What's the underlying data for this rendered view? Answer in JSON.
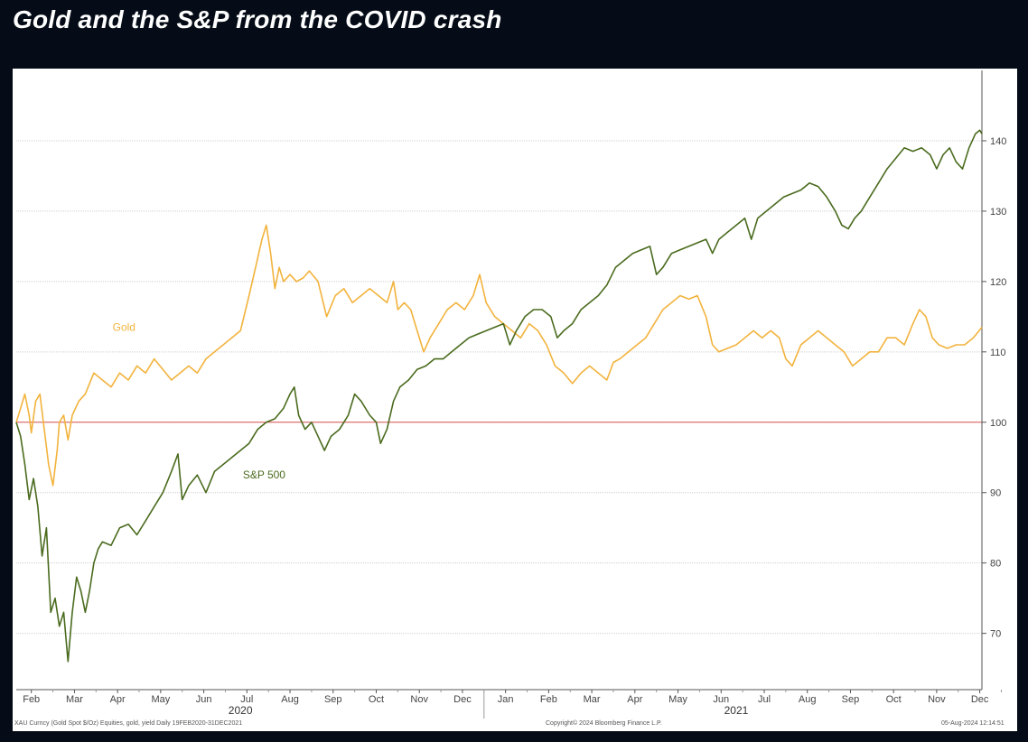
{
  "title": "Gold and the S&P from the COVID crash",
  "footer": {
    "left": "XAU Curncy (Gold Spot  $/Oz) Equities, gold, yield  Daily 19FEB2020-31DEC2021",
    "center": "Copyright© 2024 Bloomberg Finance L.P.",
    "right": "05-Aug-2024 12:14:51"
  },
  "chart_data": {
    "type": "line",
    "title": "Gold and the S&P from the COVID crash",
    "ylim": [
      62,
      150
    ],
    "yticks": [
      70,
      80,
      90,
      100,
      110,
      120,
      130,
      140
    ],
    "y_axis_side": "right",
    "grid": true,
    "reference_line": {
      "value": 100,
      "color": "#d9534f"
    },
    "x_months": [
      "Feb",
      "Mar",
      "Apr",
      "May",
      "Jun",
      "Jul",
      "Aug",
      "Sep",
      "Oct",
      "Nov",
      "Dec",
      "Jan",
      "Feb",
      "Mar",
      "Apr",
      "May",
      "Jun",
      "Jul",
      "Aug",
      "Sep",
      "Oct",
      "Nov",
      "Dec"
    ],
    "x_years": [
      "2020",
      "2021"
    ],
    "x_range": [
      0,
      22.4
    ],
    "series": [
      {
        "name": "Gold",
        "color": "#f2b33d",
        "points": [
          [
            0.0,
            100
          ],
          [
            0.1,
            102
          ],
          [
            0.2,
            104
          ],
          [
            0.3,
            101
          ],
          [
            0.35,
            98.5
          ],
          [
            0.45,
            103
          ],
          [
            0.55,
            104
          ],
          [
            0.65,
            99
          ],
          [
            0.75,
            94
          ],
          [
            0.85,
            91
          ],
          [
            0.95,
            96
          ],
          [
            1.0,
            100
          ],
          [
            1.1,
            101
          ],
          [
            1.2,
            97.5
          ],
          [
            1.3,
            101
          ],
          [
            1.45,
            103
          ],
          [
            1.6,
            104
          ],
          [
            1.8,
            107
          ],
          [
            2.0,
            106
          ],
          [
            2.2,
            105
          ],
          [
            2.4,
            107
          ],
          [
            2.6,
            106
          ],
          [
            2.8,
            108
          ],
          [
            3.0,
            107
          ],
          [
            3.2,
            109
          ],
          [
            3.4,
            107.5
          ],
          [
            3.6,
            106
          ],
          [
            3.8,
            107
          ],
          [
            4.0,
            108
          ],
          [
            4.2,
            107
          ],
          [
            4.4,
            109
          ],
          [
            4.6,
            110
          ],
          [
            4.8,
            111
          ],
          [
            5.0,
            112
          ],
          [
            5.2,
            113
          ],
          [
            5.4,
            118
          ],
          [
            5.55,
            122
          ],
          [
            5.7,
            126
          ],
          [
            5.8,
            128
          ],
          [
            5.9,
            124
          ],
          [
            6.0,
            119
          ],
          [
            6.1,
            122
          ],
          [
            6.2,
            120
          ],
          [
            6.35,
            121
          ],
          [
            6.5,
            120
          ],
          [
            6.65,
            120.5
          ],
          [
            6.8,
            121.5
          ],
          [
            7.0,
            120
          ],
          [
            7.2,
            115
          ],
          [
            7.4,
            118
          ],
          [
            7.6,
            119
          ],
          [
            7.8,
            117
          ],
          [
            8.0,
            118
          ],
          [
            8.2,
            119
          ],
          [
            8.4,
            118
          ],
          [
            8.6,
            117
          ],
          [
            8.75,
            120
          ],
          [
            8.85,
            116
          ],
          [
            9.0,
            117
          ],
          [
            9.15,
            116
          ],
          [
            9.3,
            113
          ],
          [
            9.45,
            110
          ],
          [
            9.6,
            112
          ],
          [
            9.8,
            114
          ],
          [
            10.0,
            116
          ],
          [
            10.2,
            117
          ],
          [
            10.4,
            116
          ],
          [
            10.6,
            118
          ],
          [
            10.75,
            121
          ],
          [
            10.9,
            117
          ],
          [
            11.1,
            115
          ],
          [
            11.3,
            114
          ],
          [
            11.5,
            113
          ],
          [
            11.7,
            112
          ],
          [
            11.9,
            114
          ],
          [
            12.1,
            113
          ],
          [
            12.3,
            111
          ],
          [
            12.5,
            108
          ],
          [
            12.7,
            107
          ],
          [
            12.9,
            105.5
          ],
          [
            13.1,
            107
          ],
          [
            13.3,
            108
          ],
          [
            13.5,
            107
          ],
          [
            13.7,
            106
          ],
          [
            13.85,
            108.5
          ],
          [
            14.0,
            109
          ],
          [
            14.2,
            110
          ],
          [
            14.4,
            111
          ],
          [
            14.6,
            112
          ],
          [
            14.8,
            114
          ],
          [
            15.0,
            116
          ],
          [
            15.2,
            117
          ],
          [
            15.4,
            118
          ],
          [
            15.6,
            117.5
          ],
          [
            15.8,
            118
          ],
          [
            16.0,
            115
          ],
          [
            16.15,
            111
          ],
          [
            16.3,
            110
          ],
          [
            16.5,
            110.5
          ],
          [
            16.7,
            111
          ],
          [
            16.9,
            112
          ],
          [
            17.1,
            113
          ],
          [
            17.3,
            112
          ],
          [
            17.5,
            113
          ],
          [
            17.7,
            112
          ],
          [
            17.85,
            109
          ],
          [
            18.0,
            108
          ],
          [
            18.2,
            111
          ],
          [
            18.4,
            112
          ],
          [
            18.6,
            113
          ],
          [
            18.8,
            112
          ],
          [
            19.0,
            111
          ],
          [
            19.2,
            110
          ],
          [
            19.4,
            108
          ],
          [
            19.6,
            109
          ],
          [
            19.8,
            110
          ],
          [
            20.0,
            110
          ],
          [
            20.2,
            112
          ],
          [
            20.4,
            112
          ],
          [
            20.6,
            111
          ],
          [
            20.8,
            114
          ],
          [
            20.95,
            116
          ],
          [
            21.1,
            115
          ],
          [
            21.25,
            112
          ],
          [
            21.4,
            111
          ],
          [
            21.6,
            110.5
          ],
          [
            21.8,
            111
          ],
          [
            22.0,
            111
          ],
          [
            22.2,
            112
          ],
          [
            22.4,
            113.5
          ]
        ]
      },
      {
        "name": "S&P 500",
        "color": "#4a6b1e",
        "points": [
          [
            0.0,
            100
          ],
          [
            0.1,
            98
          ],
          [
            0.2,
            94
          ],
          [
            0.3,
            89
          ],
          [
            0.4,
            92
          ],
          [
            0.5,
            88
          ],
          [
            0.6,
            81
          ],
          [
            0.7,
            85
          ],
          [
            0.8,
            73
          ],
          [
            0.9,
            75
          ],
          [
            1.0,
            71
          ],
          [
            1.1,
            73
          ],
          [
            1.2,
            66
          ],
          [
            1.3,
            73
          ],
          [
            1.4,
            78
          ],
          [
            1.5,
            76
          ],
          [
            1.6,
            73
          ],
          [
            1.7,
            76
          ],
          [
            1.8,
            80
          ],
          [
            1.9,
            82
          ],
          [
            2.0,
            83
          ],
          [
            2.2,
            82.5
          ],
          [
            2.4,
            85
          ],
          [
            2.6,
            85.5
          ],
          [
            2.8,
            84
          ],
          [
            3.0,
            86
          ],
          [
            3.2,
            88
          ],
          [
            3.4,
            90
          ],
          [
            3.6,
            93
          ],
          [
            3.75,
            95.5
          ],
          [
            3.85,
            89
          ],
          [
            4.0,
            91
          ],
          [
            4.2,
            92.5
          ],
          [
            4.4,
            90
          ],
          [
            4.6,
            93
          ],
          [
            4.8,
            94
          ],
          [
            5.0,
            95
          ],
          [
            5.2,
            96
          ],
          [
            5.4,
            97
          ],
          [
            5.6,
            99
          ],
          [
            5.8,
            100
          ],
          [
            6.0,
            100.5
          ],
          [
            6.2,
            102
          ],
          [
            6.35,
            104
          ],
          [
            6.45,
            105
          ],
          [
            6.55,
            101
          ],
          [
            6.7,
            99
          ],
          [
            6.85,
            100
          ],
          [
            7.0,
            98
          ],
          [
            7.15,
            96
          ],
          [
            7.3,
            98
          ],
          [
            7.5,
            99
          ],
          [
            7.7,
            101
          ],
          [
            7.85,
            104
          ],
          [
            8.0,
            103
          ],
          [
            8.2,
            101
          ],
          [
            8.35,
            100
          ],
          [
            8.45,
            97
          ],
          [
            8.6,
            99
          ],
          [
            8.75,
            103
          ],
          [
            8.9,
            105
          ],
          [
            9.1,
            106
          ],
          [
            9.3,
            107.5
          ],
          [
            9.5,
            108
          ],
          [
            9.7,
            109
          ],
          [
            9.9,
            109
          ],
          [
            10.1,
            110
          ],
          [
            10.3,
            111
          ],
          [
            10.5,
            112
          ],
          [
            10.7,
            112.5
          ],
          [
            10.9,
            113
          ],
          [
            11.1,
            113.5
          ],
          [
            11.3,
            114
          ],
          [
            11.45,
            111
          ],
          [
            11.6,
            113
          ],
          [
            11.8,
            115
          ],
          [
            12.0,
            116
          ],
          [
            12.2,
            116
          ],
          [
            12.4,
            115
          ],
          [
            12.55,
            112
          ],
          [
            12.7,
            113
          ],
          [
            12.9,
            114
          ],
          [
            13.1,
            116
          ],
          [
            13.3,
            117
          ],
          [
            13.5,
            118
          ],
          [
            13.7,
            119.5
          ],
          [
            13.9,
            122
          ],
          [
            14.1,
            123
          ],
          [
            14.3,
            124
          ],
          [
            14.5,
            124.5
          ],
          [
            14.7,
            125
          ],
          [
            14.85,
            121
          ],
          [
            15.0,
            122
          ],
          [
            15.2,
            124
          ],
          [
            15.4,
            124.5
          ],
          [
            15.6,
            125
          ],
          [
            15.8,
            125.5
          ],
          [
            16.0,
            126
          ],
          [
            16.15,
            124
          ],
          [
            16.3,
            126
          ],
          [
            16.5,
            127
          ],
          [
            16.7,
            128
          ],
          [
            16.9,
            129
          ],
          [
            17.05,
            126
          ],
          [
            17.2,
            129
          ],
          [
            17.4,
            130
          ],
          [
            17.6,
            131
          ],
          [
            17.8,
            132
          ],
          [
            18.0,
            132.5
          ],
          [
            18.2,
            133
          ],
          [
            18.4,
            134
          ],
          [
            18.6,
            133.5
          ],
          [
            18.8,
            132
          ],
          [
            19.0,
            130
          ],
          [
            19.15,
            128
          ],
          [
            19.3,
            127.5
          ],
          [
            19.45,
            129
          ],
          [
            19.6,
            130
          ],
          [
            19.8,
            132
          ],
          [
            20.0,
            134
          ],
          [
            20.2,
            136
          ],
          [
            20.4,
            137.5
          ],
          [
            20.6,
            139
          ],
          [
            20.8,
            138.5
          ],
          [
            21.0,
            139
          ],
          [
            21.2,
            138
          ],
          [
            21.35,
            136
          ],
          [
            21.5,
            138
          ],
          [
            21.65,
            139
          ],
          [
            21.8,
            137
          ],
          [
            21.95,
            136
          ],
          [
            22.1,
            139
          ],
          [
            22.25,
            141
          ],
          [
            22.35,
            141.5
          ],
          [
            22.4,
            141
          ]
        ]
      }
    ],
    "labels": [
      {
        "series": "Gold",
        "text": "Gold",
        "at": [
          2.5,
          113
        ]
      },
      {
        "series": "S&P 500",
        "text": "S&P 500",
        "at": [
          5.75,
          92
        ]
      }
    ]
  }
}
